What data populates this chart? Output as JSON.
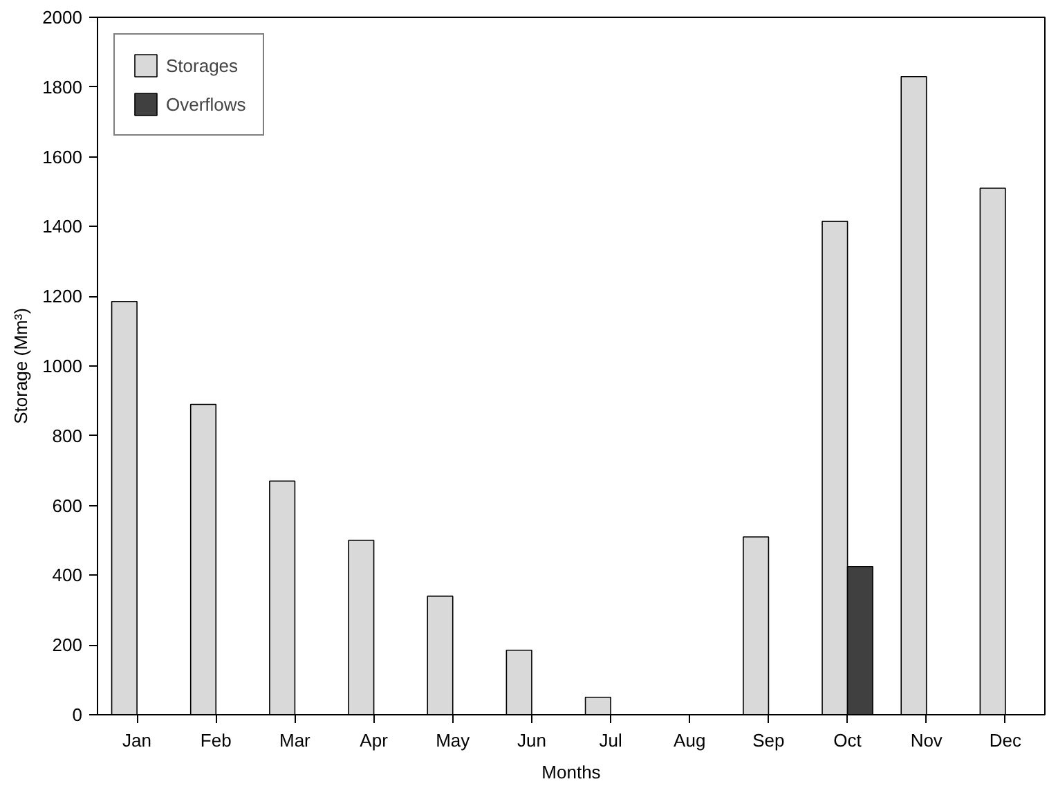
{
  "chart_data": {
    "type": "bar",
    "xlabel": "Months",
    "ylabel": "Storage (Mm³)",
    "categories": [
      "Jan",
      "Feb",
      "Mar",
      "Apr",
      "May",
      "Jun",
      "Jul",
      "Aug",
      "Sep",
      "Oct",
      "Nov",
      "Dec"
    ],
    "series": [
      {
        "name": "Storages",
        "color": "#d9d9d9",
        "values": [
          1185,
          890,
          670,
          500,
          340,
          185,
          50,
          null,
          510,
          1415,
          1830,
          1510
        ]
      },
      {
        "name": "Overflows",
        "color": "#404040",
        "values": [
          null,
          null,
          null,
          null,
          null,
          null,
          null,
          null,
          null,
          425,
          null,
          null
        ]
      }
    ],
    "ylim": [
      0,
      2000
    ],
    "yticks": [
      0,
      200,
      400,
      600,
      800,
      1000,
      1200,
      1400,
      1600,
      1800,
      2000
    ],
    "grid": false,
    "legend": "top left"
  }
}
